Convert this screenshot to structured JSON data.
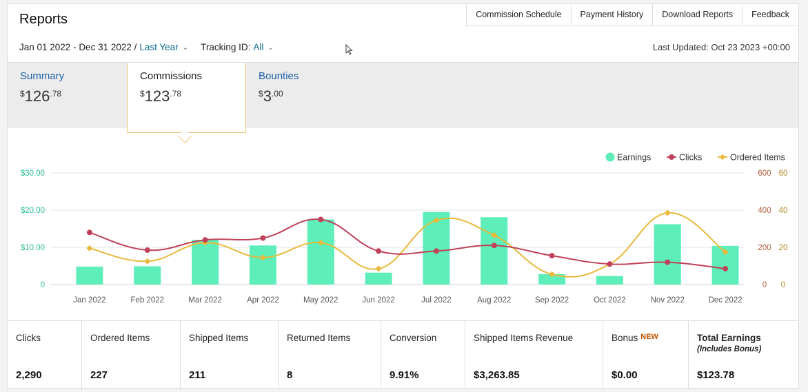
{
  "header": {
    "title": "Reports",
    "links": [
      "Commission Schedule",
      "Payment History",
      "Download Reports",
      "Feedback"
    ],
    "date_range": "Jan 01 2022 - Dec 31 2022 /",
    "range_preset": "Last Year",
    "tracking_label": "Tracking ID:",
    "tracking_value": "All",
    "last_updated": "Last Updated: Oct 23 2023 +00:00"
  },
  "tabs": [
    {
      "label": "Summary",
      "dollar": "$",
      "whole": "126",
      "cents": ".78"
    },
    {
      "label": "Commissions",
      "dollar": "$",
      "whole": "123",
      "cents": ".78"
    },
    {
      "label": "Bounties",
      "dollar": "$",
      "whole": "3",
      "cents": ".00"
    }
  ],
  "chart_data": {
    "type": "bar",
    "legend": [
      "Earnings",
      "Clicks",
      "Ordered Items"
    ],
    "legend_position": "top-right",
    "categories": [
      "Jan 2022",
      "Feb 2022",
      "Mar 2022",
      "Apr 2022",
      "May 2022",
      "Jun 2022",
      "Jul 2022",
      "Aug 2022",
      "Sep 2022",
      "Oct 2022",
      "Nov 2022",
      "Dec 2022"
    ],
    "left_axis": {
      "ticks": [
        "0",
        "$10.00",
        "$20.00",
        "$30.00"
      ],
      "range": [
        0,
        30
      ]
    },
    "right_axis_1": {
      "ticks": [
        "0",
        "200",
        "400",
        "600"
      ],
      "range": [
        0,
        600
      ]
    },
    "right_axis_2": {
      "ticks": [
        "0",
        "20",
        "40",
        "60"
      ],
      "range": [
        0,
        60
      ]
    },
    "series": [
      {
        "name": "Earnings",
        "type": "bar",
        "axis": "left",
        "color": "#5eeeb9",
        "values": [
          4.8,
          4.9,
          12.0,
          10.5,
          17.5,
          3.2,
          19.5,
          18.1,
          2.8,
          2.3,
          16.2,
          10.4
        ]
      },
      {
        "name": "Clicks",
        "type": "line",
        "axis": "right_1",
        "color": "#c0415a",
        "values": [
          280,
          185,
          240,
          250,
          350,
          180,
          180,
          210,
          155,
          110,
          120,
          85
        ]
      },
      {
        "name": "Ordered Items",
        "type": "line",
        "axis": "right_2",
        "color": "#e8b93a",
        "values": [
          19.5,
          12.5,
          22.5,
          14.5,
          22.5,
          8.5,
          34.5,
          26.5,
          5.5,
          11,
          38.5,
          17.5
        ]
      }
    ],
    "grid": true
  },
  "stats": [
    {
      "label": "Clicks",
      "value": "2,290"
    },
    {
      "label": "Ordered Items",
      "value": "227"
    },
    {
      "label": "Shipped Items",
      "value": "211"
    },
    {
      "label": "Returned Items",
      "value": "8"
    },
    {
      "label": "Conversion",
      "value": "9.91%"
    },
    {
      "label": "Shipped Items Revenue",
      "value": "$3,263.85"
    },
    {
      "label": "Bonus",
      "badge": "NEW",
      "value": "$0.00"
    },
    {
      "label": "Total Earnings",
      "sub": "(Includes Bonus)",
      "value": "$123.78"
    }
  ]
}
